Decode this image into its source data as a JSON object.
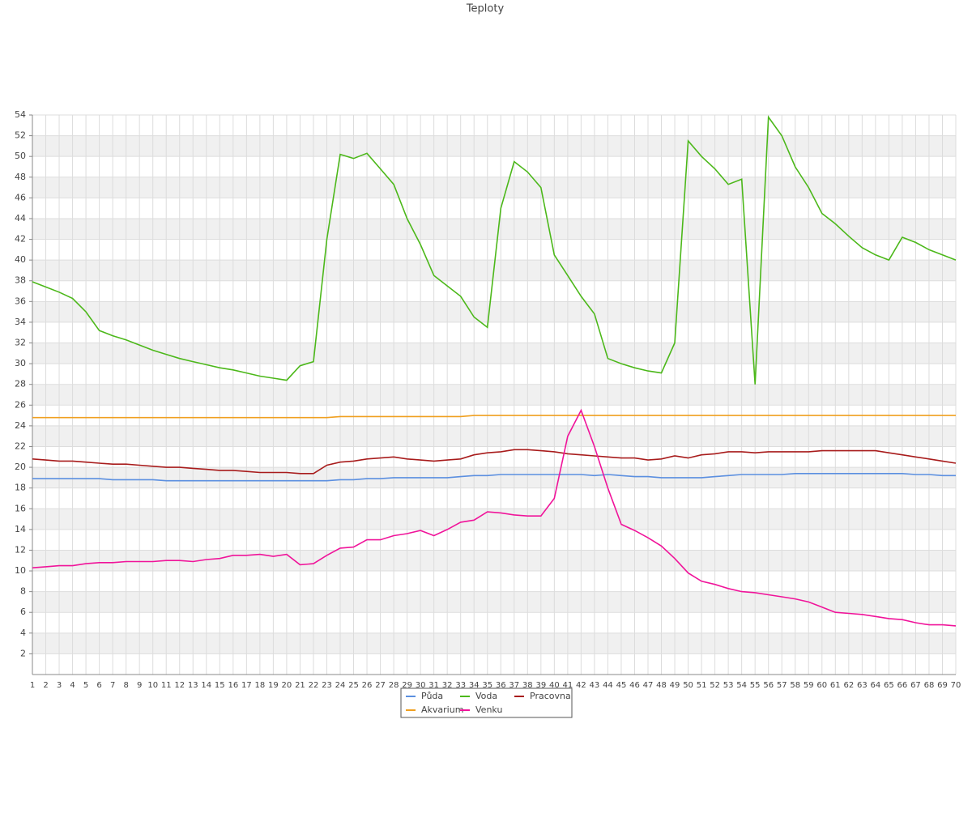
{
  "chart_data": {
    "type": "line",
    "title": "Teploty",
    "categories": [
      1,
      2,
      3,
      4,
      5,
      6,
      7,
      8,
      9,
      10,
      11,
      12,
      13,
      14,
      15,
      16,
      17,
      18,
      19,
      20,
      21,
      22,
      23,
      24,
      25,
      26,
      27,
      28,
      29,
      30,
      31,
      32,
      33,
      34,
      35,
      36,
      37,
      38,
      39,
      40,
      41,
      42,
      43,
      44,
      45,
      46,
      47,
      48,
      49,
      50,
      51,
      52,
      53,
      54,
      55,
      56,
      57,
      58,
      59,
      60,
      61,
      62,
      63,
      64,
      65,
      66,
      67,
      68,
      69,
      70
    ],
    "ylim": [
      0,
      54
    ],
    "yticks": [
      2,
      4,
      6,
      8,
      10,
      12,
      14,
      16,
      18,
      20,
      22,
      24,
      26,
      28,
      30,
      32,
      34,
      36,
      38,
      40,
      42,
      44,
      46,
      48,
      50,
      52,
      54
    ],
    "grid": true,
    "series": [
      {
        "name": "Půda",
        "color": "#5b8fe0",
        "values": [
          18.9,
          18.9,
          18.9,
          18.9,
          18.9,
          18.9,
          18.8,
          18.8,
          18.8,
          18.8,
          18.7,
          18.7,
          18.7,
          18.7,
          18.7,
          18.7,
          18.7,
          18.7,
          18.7,
          18.7,
          18.7,
          18.7,
          18.7,
          18.8,
          18.8,
          18.9,
          18.9,
          19.0,
          19.0,
          19.0,
          19.0,
          19.0,
          19.1,
          19.2,
          19.2,
          19.3,
          19.3,
          19.3,
          19.3,
          19.3,
          19.3,
          19.3,
          19.2,
          19.3,
          19.2,
          19.1,
          19.1,
          19.0,
          19.0,
          19.0,
          19.0,
          19.1,
          19.2,
          19.3,
          19.3,
          19.3,
          19.3,
          19.4,
          19.4,
          19.4,
          19.4,
          19.4,
          19.4,
          19.4,
          19.4,
          19.4,
          19.3,
          19.3,
          19.2,
          19.2
        ]
      },
      {
        "name": "Voda",
        "color": "#4cb81a",
        "values": [
          37.9,
          37.4,
          36.9,
          36.3,
          35.0,
          33.2,
          32.7,
          32.3,
          31.8,
          31.3,
          30.9,
          30.5,
          30.2,
          29.9,
          29.6,
          29.4,
          29.1,
          28.8,
          28.6,
          28.4,
          29.8,
          30.2,
          42.0,
          50.2,
          49.8,
          50.3,
          48.8,
          47.3,
          44.0,
          41.5,
          38.5,
          37.5,
          36.5,
          34.5,
          33.5,
          45.0,
          49.5,
          48.5,
          47.0,
          40.5,
          38.5,
          36.5,
          34.8,
          30.5,
          30.0,
          29.6,
          29.3,
          29.1,
          32.0,
          51.5,
          50.0,
          48.8,
          47.3,
          47.8,
          28.0,
          53.8,
          52.0,
          49.0,
          47.0,
          44.5,
          43.5,
          42.3,
          41.2,
          40.5,
          40.0,
          42.2,
          41.7,
          41.0,
          40.5,
          40.0
        ]
      },
      {
        "name": "Pracovna",
        "color": "#a81c1c",
        "values": [
          20.8,
          20.7,
          20.6,
          20.6,
          20.5,
          20.4,
          20.3,
          20.3,
          20.2,
          20.1,
          20.0,
          20.0,
          19.9,
          19.8,
          19.7,
          19.7,
          19.6,
          19.5,
          19.5,
          19.5,
          19.4,
          19.4,
          20.2,
          20.5,
          20.6,
          20.8,
          20.9,
          21.0,
          20.8,
          20.7,
          20.6,
          20.7,
          20.8,
          21.2,
          21.4,
          21.5,
          21.7,
          21.7,
          21.6,
          21.5,
          21.3,
          21.2,
          21.1,
          21.0,
          20.9,
          20.9,
          20.7,
          20.8,
          21.1,
          20.9,
          21.2,
          21.3,
          21.5,
          21.5,
          21.4,
          21.5,
          21.5,
          21.5,
          21.5,
          21.6,
          21.6,
          21.6,
          21.6,
          21.6,
          21.4,
          21.2,
          21.0,
          20.8,
          20.6,
          20.4
        ]
      },
      {
        "name": "Akvarium",
        "color": "#f0a020",
        "values": [
          24.8,
          24.8,
          24.8,
          24.8,
          24.8,
          24.8,
          24.8,
          24.8,
          24.8,
          24.8,
          24.8,
          24.8,
          24.8,
          24.8,
          24.8,
          24.8,
          24.8,
          24.8,
          24.8,
          24.8,
          24.8,
          24.8,
          24.8,
          24.9,
          24.9,
          24.9,
          24.9,
          24.9,
          24.9,
          24.9,
          24.9,
          24.9,
          24.9,
          25.0,
          25.0,
          25.0,
          25.0,
          25.0,
          25.0,
          25.0,
          25.0,
          25.0,
          25.0,
          25.0,
          25.0,
          25.0,
          25.0,
          25.0,
          25.0,
          25.0,
          25.0,
          25.0,
          25.0,
          25.0,
          25.0,
          25.0,
          25.0,
          25.0,
          25.0,
          25.0,
          25.0,
          25.0,
          25.0,
          25.0,
          25.0,
          25.0,
          25.0,
          25.0,
          25.0,
          25.0
        ]
      },
      {
        "name": "Venku",
        "color": "#f0149a",
        "values": [
          10.3,
          10.4,
          10.5,
          10.5,
          10.7,
          10.8,
          10.8,
          10.9,
          10.9,
          10.9,
          11.0,
          11.0,
          10.9,
          11.1,
          11.2,
          11.5,
          11.5,
          11.6,
          11.4,
          11.6,
          10.6,
          10.7,
          11.5,
          12.2,
          12.3,
          13.0,
          13.0,
          13.4,
          13.6,
          13.9,
          13.4,
          14.0,
          14.7,
          14.9,
          15.7,
          15.6,
          15.4,
          15.3,
          15.3,
          17.0,
          23.0,
          25.5,
          22.0,
          18.0,
          14.5,
          13.9,
          13.2,
          12.4,
          11.2,
          9.8,
          9.0,
          8.7,
          8.3,
          8.0,
          7.9,
          7.7,
          7.5,
          7.3,
          7.0,
          6.5,
          6.0,
          5.9,
          5.8,
          5.6,
          5.4,
          5.3,
          5.0,
          4.8,
          4.8,
          4.7
        ]
      }
    ]
  }
}
